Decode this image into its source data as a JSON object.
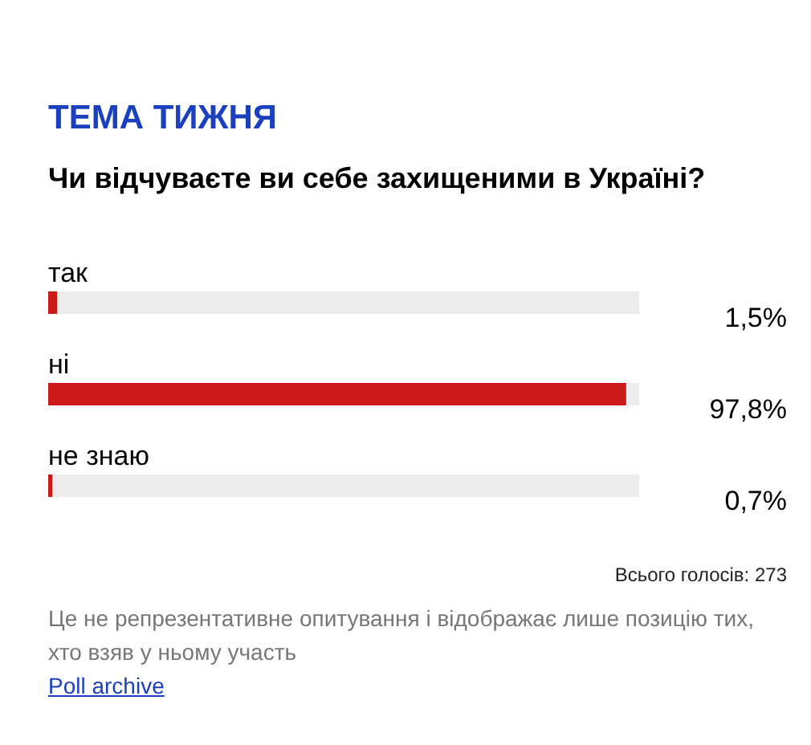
{
  "chart_data": {
    "type": "bar",
    "orientation": "horizontal",
    "title": "ТЕМА ТИЖНЯ",
    "subtitle": "Чи відчуваєте ви себе захищеними в Україні?",
    "categories": [
      "так",
      "ні",
      "не знаю"
    ],
    "values": [
      1.5,
      97.8,
      0.7
    ],
    "value_labels": [
      "1,5%",
      "97,8%",
      "0,7%"
    ],
    "color": "#cc1a1a",
    "xlim": [
      0,
      100
    ],
    "tick_labels": false,
    "annotations": [
      "Всього голосів: 273",
      "Це не репрезентативне опитування і відображає лише позицію тих, хто взяв у ньому участь",
      "Poll archive"
    ]
  }
}
